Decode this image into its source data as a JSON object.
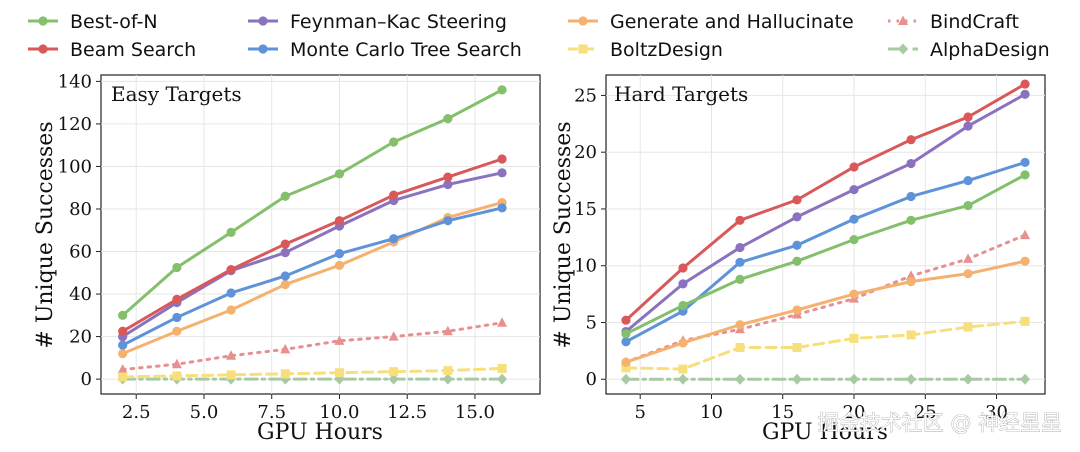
{
  "watermark": "掘金技术社区 @ 神经星星",
  "legend": [
    {
      "name": "Best-of-N",
      "color": "#84c06c",
      "dash": "solid",
      "marker": "circle"
    },
    {
      "name": "Beam Search",
      "color": "#d9585a",
      "dash": "solid",
      "marker": "circle"
    },
    {
      "name": "Feynman–Kac Steering",
      "color": "#8b72bf",
      "dash": "solid",
      "marker": "circle"
    },
    {
      "name": "Monte Carlo Tree Search",
      "color": "#5f93d9",
      "dash": "solid",
      "marker": "circle"
    },
    {
      "name": "Generate and Hallucinate",
      "color": "#f5b26e",
      "dash": "solid",
      "marker": "circle"
    },
    {
      "name": "BoltzDesign",
      "color": "#f7df7c",
      "dash": "dashed",
      "marker": "square"
    },
    {
      "name": "BindCraft",
      "color": "#e89090",
      "dash": "dotted",
      "marker": "triangle"
    },
    {
      "name": "AlphaDesign",
      "color": "#a9c9a4",
      "dash": "dashdot",
      "marker": "diamond"
    }
  ],
  "chart_data": [
    {
      "type": "line",
      "title": "Easy Targets",
      "xlabel": "GPU Hours",
      "ylabel": "# Unique Successes",
      "xlim": [
        1.2,
        17.4
      ],
      "ylim": [
        -7,
        143
      ],
      "xticks": [
        2.5,
        5.0,
        7.5,
        10.0,
        12.5,
        15.0
      ],
      "xtick_labels": [
        "2.5",
        "5.0",
        "7.5",
        "10.0",
        "12.5",
        "15.0"
      ],
      "yticks": [
        0,
        20,
        40,
        60,
        80,
        100,
        120,
        140
      ],
      "ytick_labels": [
        "0",
        "20",
        "40",
        "60",
        "80",
        "100",
        "120",
        "140"
      ],
      "grid": true,
      "x": [
        2,
        4,
        6,
        8,
        10,
        12,
        14,
        16
      ],
      "series": [
        {
          "name": "Best-of-N",
          "values": [
            30,
            52.5,
            69,
            86,
            96.5,
            111.5,
            122.5,
            136
          ]
        },
        {
          "name": "Beam Search",
          "values": [
            22.5,
            37.5,
            51.5,
            63.5,
            74.5,
            86.5,
            95,
            103.5
          ]
        },
        {
          "name": "Feynman–Kac Steering",
          "values": [
            20,
            36,
            51,
            59.5,
            72,
            84,
            91.5,
            97
          ]
        },
        {
          "name": "Monte Carlo Tree Search",
          "values": [
            16,
            29,
            40.5,
            48.5,
            59,
            66,
            74.5,
            80.5
          ]
        },
        {
          "name": "Generate and Hallucinate",
          "values": [
            12,
            22.5,
            32.5,
            44.5,
            53.5,
            64.5,
            76,
            83
          ]
        },
        {
          "name": "BoltzDesign",
          "values": [
            1,
            1.5,
            2,
            2.5,
            3,
            3.5,
            4,
            5
          ]
        },
        {
          "name": "BindCraft",
          "values": [
            4.5,
            7,
            11,
            14,
            18,
            20,
            22.5,
            26.5
          ]
        },
        {
          "name": "AlphaDesign",
          "values": [
            0,
            0,
            0,
            0,
            0,
            0,
            0,
            0
          ]
        }
      ]
    },
    {
      "type": "line",
      "title": "Hard Targets",
      "xlabel": "GPU Hours",
      "ylabel": "# Unique Successes",
      "xlim": [
        2.6,
        33.4
      ],
      "ylim": [
        -1.3,
        26.8
      ],
      "xticks": [
        5,
        10,
        15,
        20,
        25,
        30
      ],
      "xtick_labels": [
        "5",
        "10",
        "15",
        "20",
        "25",
        "30"
      ],
      "yticks": [
        0,
        5,
        10,
        15,
        20,
        25
      ],
      "ytick_labels": [
        "0",
        "5",
        "10",
        "15",
        "20",
        "25"
      ],
      "grid": true,
      "x": [
        4,
        8,
        12,
        16,
        20,
        24,
        28,
        32
      ],
      "series": [
        {
          "name": "Best-of-N",
          "values": [
            4,
            6.5,
            8.8,
            10.4,
            12.3,
            14,
            15.3,
            18
          ]
        },
        {
          "name": "Beam Search",
          "values": [
            5.2,
            9.8,
            14,
            15.8,
            18.7,
            21.1,
            23.1,
            26
          ]
        },
        {
          "name": "Feynman–Kac Steering",
          "values": [
            4.2,
            8.4,
            11.6,
            14.3,
            16.7,
            19,
            22.3,
            25.1
          ]
        },
        {
          "name": "Monte Carlo Tree Search",
          "values": [
            3.3,
            6,
            10.3,
            11.8,
            14.1,
            16.1,
            17.5,
            19.1
          ]
        },
        {
          "name": "Generate and Hallucinate",
          "values": [
            1.5,
            3.2,
            4.8,
            6.1,
            7.5,
            8.6,
            9.3,
            10.4
          ]
        },
        {
          "name": "BoltzDesign",
          "values": [
            1,
            0.9,
            2.8,
            2.8,
            3.6,
            3.9,
            4.6,
            5.1
          ]
        },
        {
          "name": "BindCraft",
          "values": [
            1.5,
            3.4,
            4.4,
            5.7,
            7.1,
            9.1,
            10.6,
            12.7
          ]
        },
        {
          "name": "AlphaDesign",
          "values": [
            0,
            0,
            0,
            0,
            0,
            0,
            0,
            0
          ]
        }
      ]
    }
  ]
}
